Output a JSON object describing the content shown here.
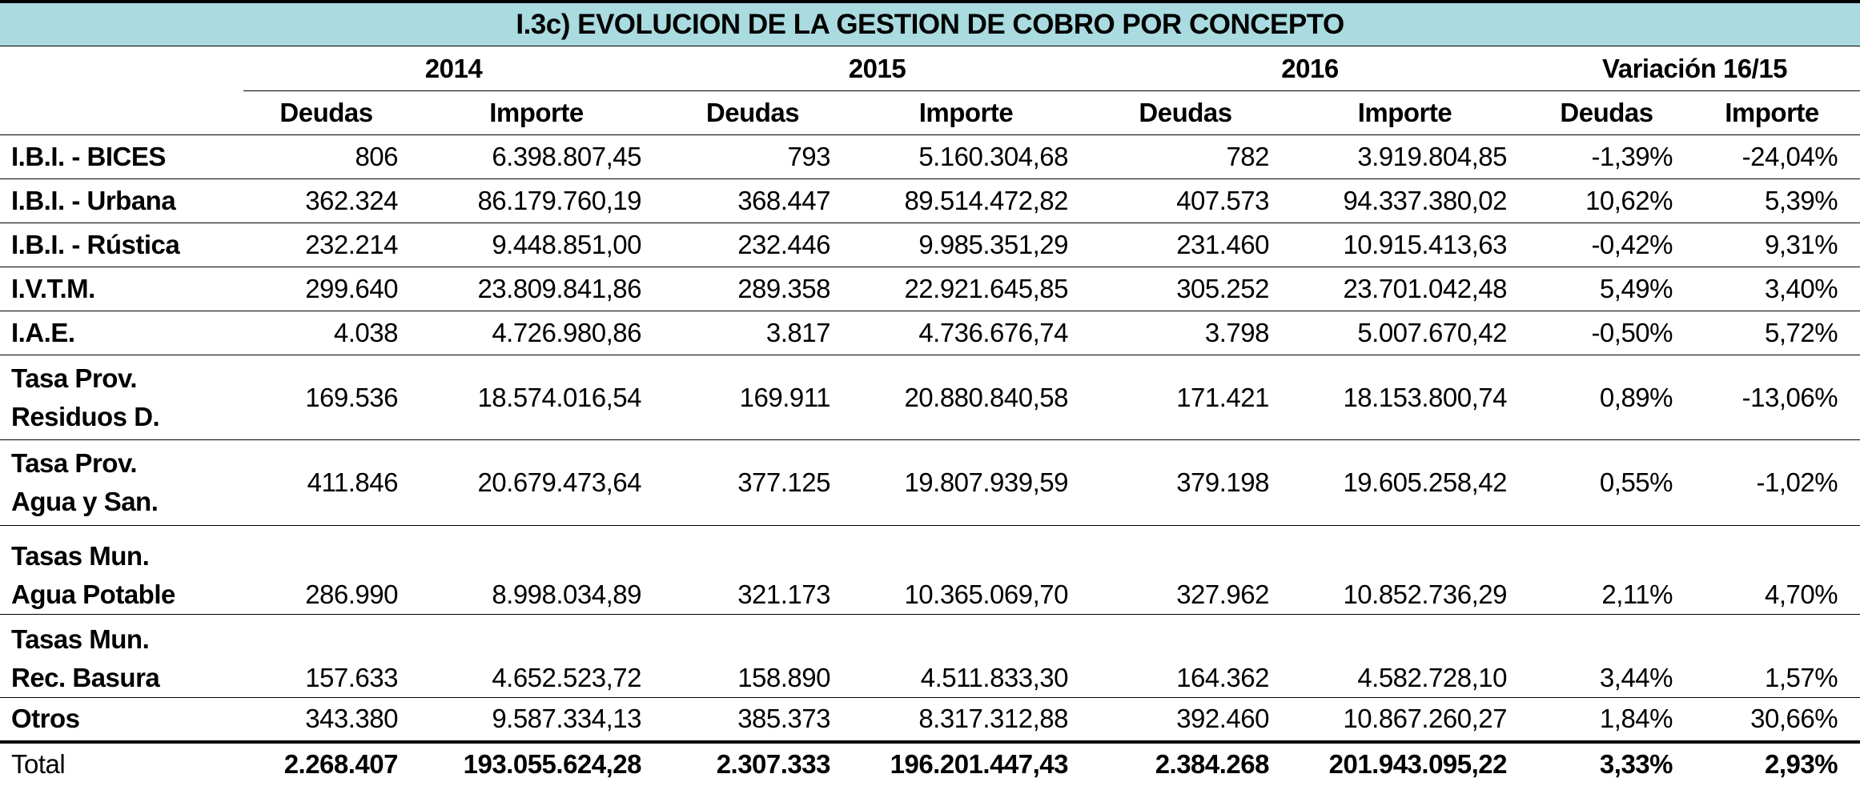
{
  "title": "I.3c) EVOLUCION DE LA GESTION DE COBRO POR CONCEPTO",
  "years": [
    "2014",
    "2015",
    "2016",
    "Variación 16/15"
  ],
  "subheaders": [
    "Deudas",
    "Importe",
    "Deudas",
    "Importe",
    "Deudas",
    "Importe",
    "Deudas",
    "Importe"
  ],
  "rows": [
    {
      "label": [
        "I.B.I. - BICES"
      ],
      "values": [
        "806",
        "6.398.807,45",
        "793",
        "5.160.304,68",
        "782",
        "3.919.804,85",
        "-1,39%",
        "-24,04%"
      ]
    },
    {
      "label": [
        "I.B.I. - Urbana"
      ],
      "values": [
        "362.324",
        "86.179.760,19",
        "368.447",
        "89.514.472,82",
        "407.573",
        "94.337.380,02",
        "10,62%",
        "5,39%"
      ]
    },
    {
      "label": [
        "I.B.I. - Rústica"
      ],
      "values": [
        "232.214",
        "9.448.851,00",
        "232.446",
        "9.985.351,29",
        "231.460",
        "10.915.413,63",
        "-0,42%",
        "9,31%"
      ]
    },
    {
      "label": [
        "I.V.T.M."
      ],
      "values": [
        "299.640",
        "23.809.841,86",
        "289.358",
        "22.921.645,85",
        "305.252",
        "23.701.042,48",
        "5,49%",
        "3,40%"
      ]
    },
    {
      "label": [
        "I.A.E."
      ],
      "values": [
        "4.038",
        "4.726.980,86",
        "3.817",
        "4.736.676,74",
        "3.798",
        "5.007.670,42",
        "-0,50%",
        "5,72%"
      ]
    },
    {
      "label": [
        "Tasa Prov.",
        "Residuos D."
      ],
      "values": [
        "169.536",
        "18.574.016,54",
        "169.911",
        "20.880.840,58",
        "171.421",
        "18.153.800,74",
        "0,89%",
        "-13,06%"
      ]
    },
    {
      "label": [
        "Tasa Prov.",
        "Agua y San."
      ],
      "values": [
        "411.846",
        "20.679.473,64",
        "377.125",
        "19.807.939,59",
        "379.198",
        "19.605.258,42",
        "0,55%",
        "-1,02%"
      ]
    },
    {
      "label": [
        "Tasas Mun.",
        "Agua Potable"
      ],
      "values": [
        "286.990",
        "8.998.034,89",
        "321.173",
        "10.365.069,70",
        "327.962",
        "10.852.736,29",
        "2,11%",
        "4,70%"
      ]
    },
    {
      "label": [
        "Tasas Mun.",
        "Rec. Basura"
      ],
      "values": [
        "157.633",
        "4.652.523,72",
        "158.890",
        "4.511.833,30",
        "164.362",
        "4.582.728,10",
        "3,44%",
        "1,57%"
      ]
    },
    {
      "label": [
        "Otros"
      ],
      "values": [
        "343.380",
        "9.587.334,13",
        "385.373",
        "8.317.312,88",
        "392.460",
        "10.867.260,27",
        "1,84%",
        "30,66%"
      ]
    }
  ],
  "total": {
    "label": "Total",
    "values": [
      "2.268.407",
      "193.055.624,28",
      "2.307.333",
      "196.201.447,43",
      "2.384.268",
      "201.943.095,22",
      "3,33%",
      "2,93%"
    ]
  }
}
